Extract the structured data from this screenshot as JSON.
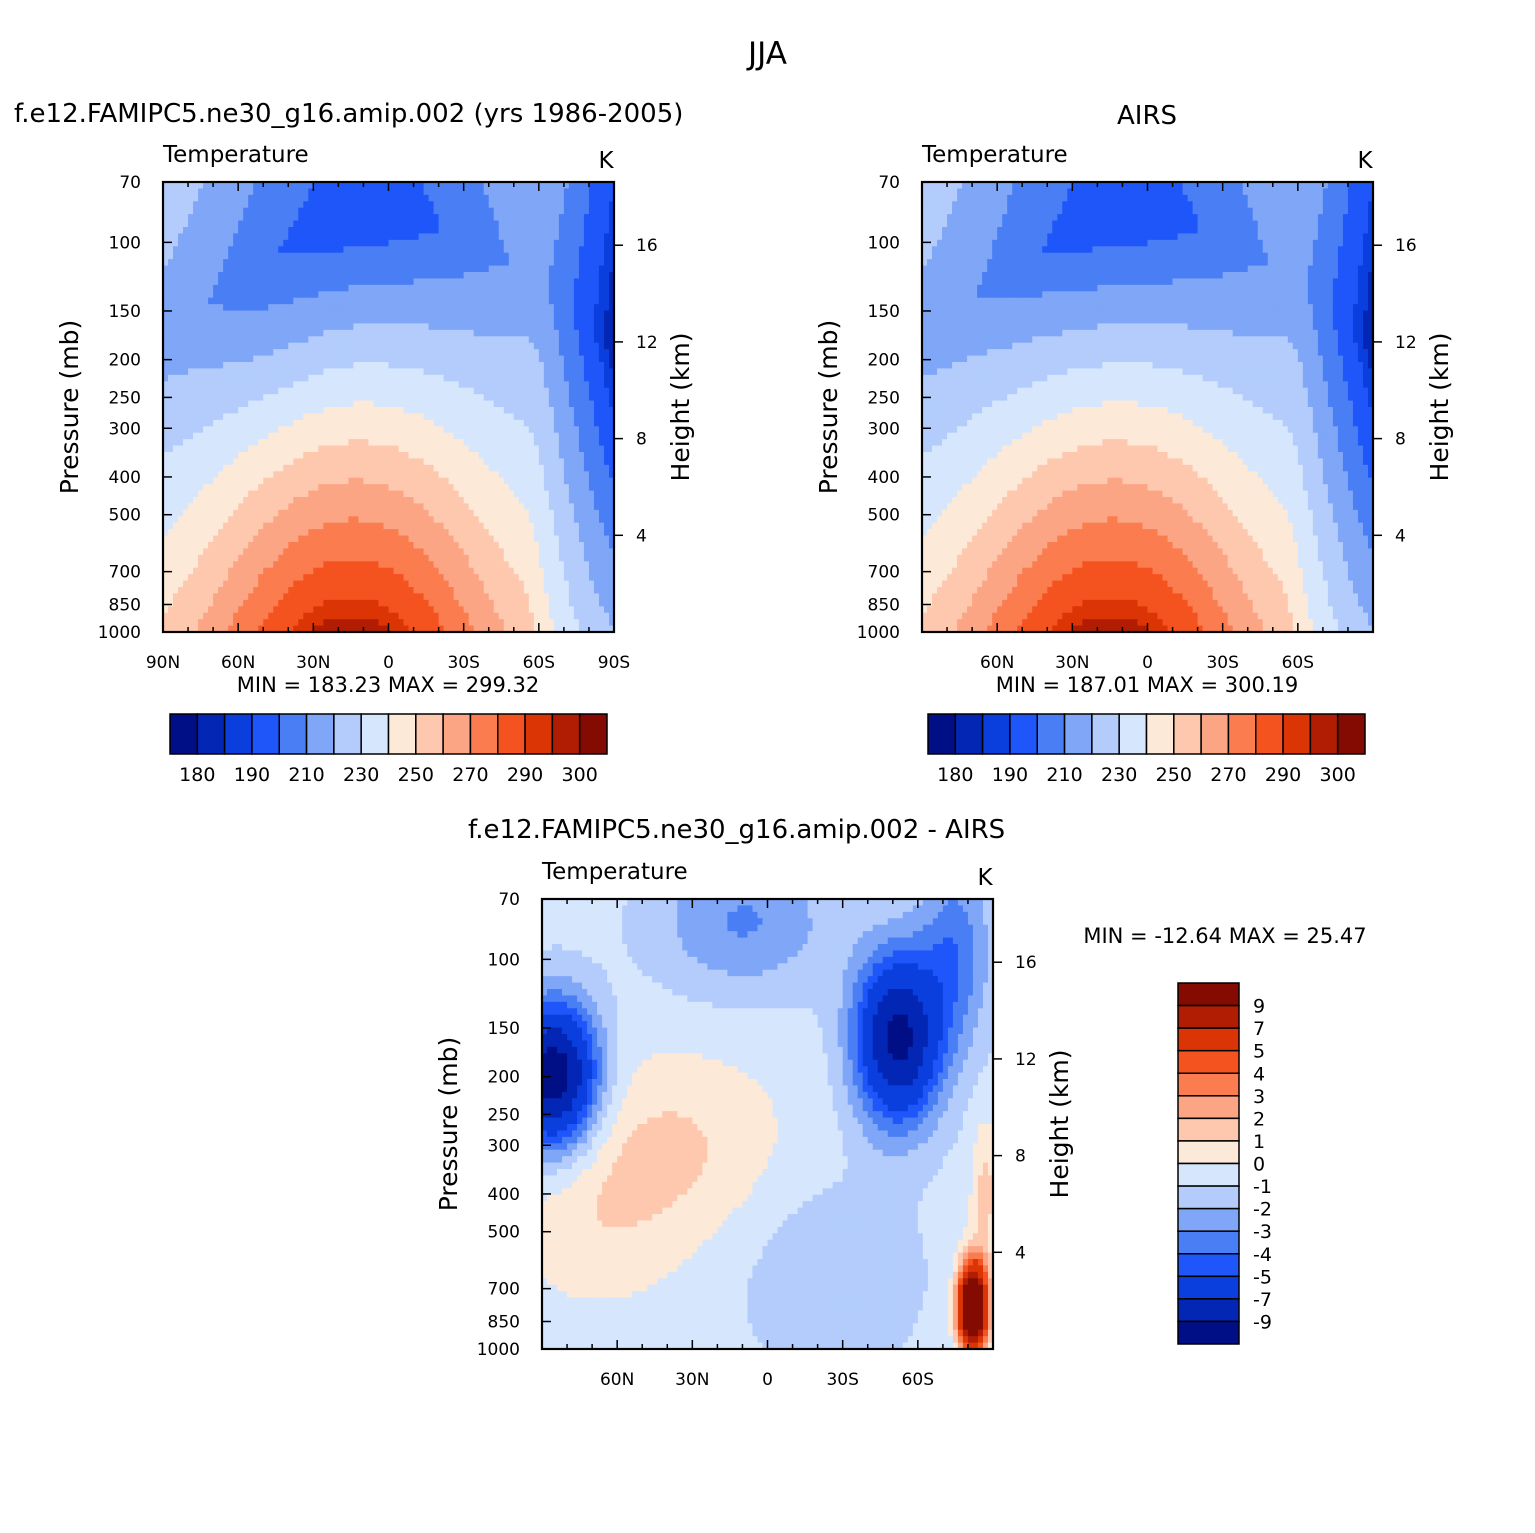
{
  "figure": {
    "title": "JJA",
    "model_label": "f.e12.FAMIPC5.ne30_g16.amip.002 (yrs 1986-2005)",
    "obs_label": "AIRS",
    "diff_label": "f.e12.FAMIPC5.ne30_g16.amip.002 - AIRS"
  },
  "colors": {
    "abs_levels": [
      "#000f86",
      "#0326b5",
      "#0a3fde",
      "#1e56fa",
      "#4a7ef5",
      "#7fa6f7",
      "#b3ccfb",
      "#d6e7fd",
      "#fde9d8",
      "#fdc8ae",
      "#fba584",
      "#fa7c4f",
      "#f4531f",
      "#dc3505",
      "#b11d03",
      "#830b01"
    ],
    "diff_levels": [
      "#000f86",
      "#0326b5",
      "#0a3fde",
      "#1e56fa",
      "#4a7ef5",
      "#7fa6f7",
      "#b3ccfb",
      "#d6e7fd",
      "#fde9d8",
      "#fdc8ae",
      "#fba584",
      "#fa7c4f",
      "#f4531f",
      "#dc3505",
      "#b11d03",
      "#830b01"
    ]
  },
  "chart_data": [
    {
      "type": "heatmap",
      "title": "f.e12.FAMIPC5.ne30_g16.amip.002 (yrs 1986-2005)",
      "subtitle": "Temperature",
      "units": "K",
      "xlabel": "",
      "ylabel": "Pressure (mb)",
      "ylabel_right": "Height (km)",
      "x_ticks": [
        "90N",
        "60N",
        "30N",
        "0",
        "30S",
        "60S",
        "90S"
      ],
      "y_ticks": [
        "70",
        "100",
        "150",
        "200",
        "250",
        "300",
        "400",
        "500",
        "700",
        "850",
        "1000"
      ],
      "y_ticks_right": [
        "16",
        "12",
        "8",
        "4"
      ],
      "xlim": [
        90,
        -90
      ],
      "ylim": [
        1000,
        70
      ],
      "y_scale": "log",
      "min_label": "MIN = 183.23",
      "max_label": "MAX = 299.32",
      "min": 183.23,
      "max": 299.32,
      "colorbar_labels": [
        "180",
        "190",
        "210",
        "230",
        "250",
        "270",
        "290",
        "300"
      ],
      "contour_levels": [
        180,
        185,
        190,
        200,
        210,
        220,
        230,
        240,
        250,
        260,
        270,
        280,
        290,
        295,
        300
      ]
    },
    {
      "type": "heatmap",
      "title": "AIRS",
      "subtitle": "Temperature",
      "units": "K",
      "xlabel": "",
      "ylabel": "Pressure (mb)",
      "ylabel_right": "Height (km)",
      "x_ticks": [
        "60N",
        "30N",
        "0",
        "30S",
        "60S"
      ],
      "y_ticks": [
        "70",
        "100",
        "150",
        "200",
        "250",
        "300",
        "400",
        "500",
        "700",
        "850",
        "1000"
      ],
      "y_ticks_right": [
        "16",
        "12",
        "8",
        "4"
      ],
      "xlim": [
        90,
        -90
      ],
      "ylim": [
        1000,
        70
      ],
      "y_scale": "log",
      "min_label": "MIN = 187.01",
      "max_label": "MAX = 300.19",
      "min": 187.01,
      "max": 300.19,
      "colorbar_labels": [
        "180",
        "190",
        "210",
        "230",
        "250",
        "270",
        "290",
        "300"
      ],
      "contour_levels": [
        180,
        185,
        190,
        200,
        210,
        220,
        230,
        240,
        250,
        260,
        270,
        280,
        290,
        295,
        300
      ]
    },
    {
      "type": "heatmap",
      "title": "f.e12.FAMIPC5.ne30_g16.amip.002 - AIRS",
      "subtitle": "Temperature",
      "units": "K",
      "xlabel": "",
      "ylabel": "Pressure (mb)",
      "ylabel_right": "Height (km)",
      "x_ticks": [
        "60N",
        "30N",
        "0",
        "30S",
        "60S"
      ],
      "y_ticks": [
        "70",
        "100",
        "150",
        "200",
        "250",
        "300",
        "400",
        "500",
        "700",
        "850",
        "1000"
      ],
      "y_ticks_right": [
        "16",
        "12",
        "8",
        "4"
      ],
      "xlim": [
        90,
        -90
      ],
      "ylim": [
        1000,
        70
      ],
      "y_scale": "log",
      "min_label": "MIN = -12.64",
      "max_label": "MAX = 25.47",
      "min": -12.64,
      "max": 25.47,
      "colorbar_labels": [
        "9",
        "7",
        "5",
        "4",
        "3",
        "2",
        "1",
        "0",
        "-1",
        "-2",
        "-3",
        "-4",
        "-5",
        "-7",
        "-9"
      ],
      "contour_levels": [
        -9,
        -7,
        -5,
        -4,
        -3,
        -2,
        -1,
        0,
        1,
        2,
        3,
        4,
        5,
        7,
        9
      ]
    }
  ]
}
